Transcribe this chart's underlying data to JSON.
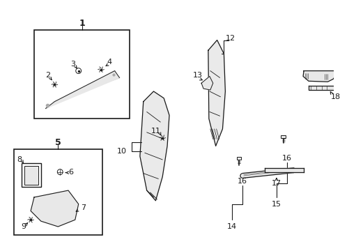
{
  "background_color": "#ffffff",
  "figsize": [
    4.89,
    3.6
  ],
  "dpi": 100,
  "black": "#1a1a1a",
  "gray_fill": "#e8e8e8",
  "gray_line": "#555555"
}
